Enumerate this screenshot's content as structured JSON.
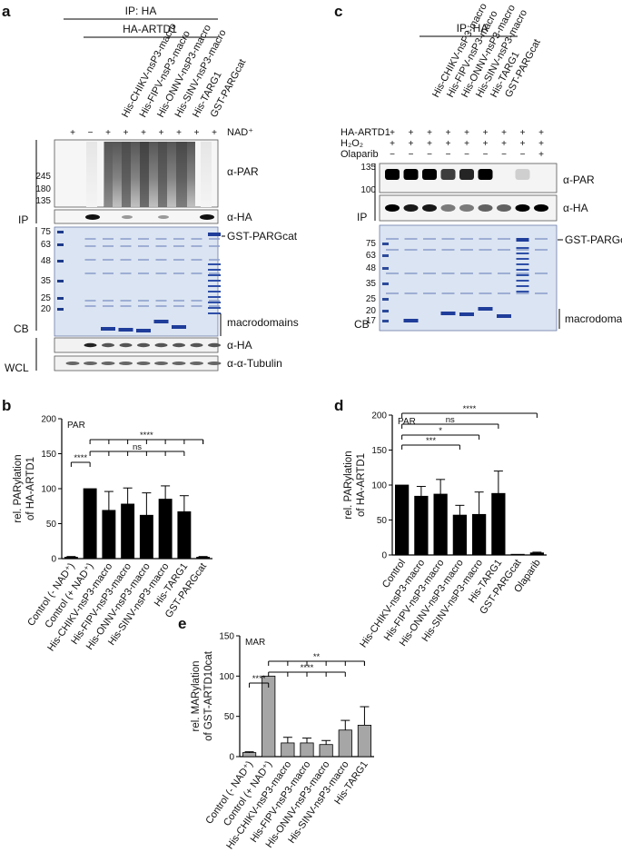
{
  "panel_a": {
    "letter": "a",
    "ip_label": "IP: HA",
    "construct": "HA-ARTD1",
    "lanes": [
      "His-CHIKV-nsP3-macro",
      "His-FIPV-nsP3-macro",
      "His-ONNV-nsP3-macro",
      "His-SINV-nsP3-macro",
      "His-TARG1",
      "GST-PARGcat"
    ],
    "nad_row": {
      "label": "NAD⁺",
      "signs": [
        "+",
        "−",
        "+",
        "+",
        "+",
        "+",
        "+",
        "+",
        "+"
      ]
    },
    "mw_par": [
      "245",
      "180",
      "135"
    ],
    "mw_cb": [
      "75",
      "63",
      "48",
      "35",
      "25",
      "20"
    ],
    "blot_labels": {
      "par": "α-PAR",
      "ha": "α-HA",
      "gst": "GST-PARGcat",
      "macro": "macrodomains",
      "ha_wcl": "α-HA",
      "tubulin": "α-α-Tubulin"
    },
    "side_labels": {
      "ip": "IP",
      "cb": "CB",
      "wcl": "WCL"
    }
  },
  "panel_c": {
    "letter": "c",
    "ip_label": "IP: HA",
    "lanes": [
      "His-CHIKV-nsP3-macro",
      "His-FIPV-nsP3-macro",
      "His-ONNV-nsP3-macro",
      "His-SINV-nsP3-macro",
      "His-TARG1",
      "GST-PARGcat"
    ],
    "rows": [
      {
        "label": "HA-ARTD1",
        "signs": [
          "+",
          "+",
          "+",
          "+",
          "+",
          "+",
          "+",
          "+",
          "+"
        ]
      },
      {
        "label": "H₂O₂",
        "signs": [
          "+",
          "+",
          "+",
          "+",
          "+",
          "+",
          "+",
          "+",
          "+"
        ]
      },
      {
        "label": "Olaparib",
        "signs": [
          "−",
          "−",
          "−",
          "−",
          "−",
          "−",
          "−",
          "−",
          "+"
        ]
      }
    ],
    "mw_par": [
      "135",
      "100"
    ],
    "mw_cb": [
      "75",
      "63",
      "48",
      "35",
      "25",
      "20",
      "17"
    ],
    "blot_labels": {
      "par": "α-PAR",
      "ha": "α-HA",
      "gst": "GST-PARGcat",
      "macro": "macrodomains"
    },
    "side_labels": {
      "ip": "IP",
      "cb": "CB"
    }
  },
  "chart_data": [
    {
      "panel": "b",
      "type": "bar",
      "inner_label": "PAR",
      "ylabel": "rel. PARylation of HA-ARTD1",
      "ylim": [
        0,
        200
      ],
      "yticks": [
        "0",
        "50",
        "100",
        "150",
        "200"
      ],
      "categories": [
        "Control (- NAD⁺)",
        "Control (+ NAD⁺)",
        "His-CHIKV-nsP3-macro",
        "His-FIPV-nsP3-macro",
        "His-ONNV-nsP3-macro",
        "His-SINV-nsP3-macro",
        "His-TARG1",
        "GST-PARGcat"
      ],
      "values": [
        2,
        100,
        69,
        78,
        62,
        85,
        67,
        2
      ],
      "errors": [
        1,
        0,
        27,
        23,
        32,
        19,
        23,
        1
      ],
      "bar_color": "#000000",
      "significance": [
        {
          "label": "****",
          "from": 0,
          "to": 1
        },
        {
          "label": "ns",
          "from": 1,
          "to": 6
        },
        {
          "label": "****",
          "from": 1,
          "to": 7
        }
      ]
    },
    {
      "panel": "d",
      "type": "bar",
      "inner_label": "PAR",
      "ylabel": "rel. PARylation of HA-ARTD1",
      "ylim": [
        0,
        200
      ],
      "yticks": [
        "0",
        "50",
        "100",
        "150",
        "200"
      ],
      "categories": [
        "Control",
        "His-CHIKV-nsP3-macro",
        "His-FIPV-nsP3-macro",
        "His-ONNV-nsP3-macro",
        "His-SINV-nsP3-macro",
        "His-TARG1",
        "GST-PARGcat",
        "Olaparib"
      ],
      "values": [
        100,
        84,
        87,
        57,
        58,
        88,
        1,
        3
      ],
      "errors": [
        0,
        14,
        21,
        14,
        32,
        32,
        0,
        1
      ],
      "bar_color": "#000000",
      "significance": [
        {
          "label": "***",
          "from": 0,
          "to": 3
        },
        {
          "label": "*",
          "from": 0,
          "to": 4
        },
        {
          "label": "ns",
          "from": 0,
          "to": 5
        },
        {
          "label": "****",
          "from": 0,
          "to": 7
        }
      ]
    },
    {
      "panel": "e",
      "type": "bar",
      "inner_label": "MAR",
      "ylabel": "rel. MARylation of GST-ARTD10cat",
      "ylim": [
        0,
        150
      ],
      "yticks": [
        "0",
        "50",
        "100",
        "150"
      ],
      "categories": [
        "Control (- NAD⁺)",
        "Control (+ NAD⁺)",
        "His-CHIKV-nsP3-macro",
        "His-FIPV-nsP3-macro",
        "His-ONNV-nsP3-macro",
        "His-SINV-nsP3-macro",
        "His-TARG1"
      ],
      "values": [
        5,
        100,
        17,
        17,
        15,
        33,
        39
      ],
      "errors": [
        1,
        0,
        7,
        6,
        5,
        12,
        23
      ],
      "bar_color": "#a6a6a6",
      "significance": [
        {
          "label": "****",
          "from": 0,
          "to": 1
        },
        {
          "label": "****",
          "from": 1,
          "to": 5
        },
        {
          "label": "**",
          "from": 1,
          "to": 6
        }
      ]
    }
  ]
}
